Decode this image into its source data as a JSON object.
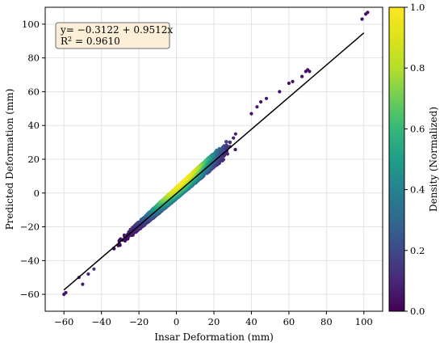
{
  "chart_data": {
    "type": "scatter",
    "xlabel": "Insar Deformation (mm)",
    "ylabel": "Predicted Deformation (mm)",
    "xlim": [
      -70,
      110
    ],
    "ylim": [
      -70,
      110
    ],
    "xticks": [
      -60,
      -40,
      -20,
      0,
      20,
      40,
      60,
      80,
      100
    ],
    "yticks": [
      -60,
      -40,
      -20,
      0,
      20,
      40,
      60,
      80,
      100
    ],
    "grid": true,
    "colormap": "viridis",
    "colorbar": {
      "label": "Density (Normalized)",
      "range": [
        0.0,
        1.0
      ],
      "ticks": [
        0.0,
        0.2,
        0.4,
        0.6,
        0.8,
        1.0
      ],
      "tick_labels": [
        "0.0",
        "0.2",
        "0.4",
        "0.6",
        "0.8",
        "1.0"
      ]
    },
    "fit_line": {
      "intercept": -0.3122,
      "slope": 0.9512,
      "x_range": [
        -60,
        100
      ],
      "color": "#000000"
    },
    "annotation": {
      "equation": "y= −0.3122 + 0.9512x",
      "r2_prefix": "R",
      "r2_sup": "2",
      "r2_suffix": " = 0.9610",
      "placement": "top-left",
      "background": "#fdeed8"
    },
    "points": {
      "core": {
        "x_range": [
          -38,
          34
        ],
        "upper_band": {
          "intercept": 3.5,
          "slope": 1.02
        },
        "lower_band": {
          "intercept": -3.5,
          "slope": 0.92
        },
        "description_density": "peak near (5, 15)"
      },
      "outliers": [
        {
          "x": -60,
          "y": -60,
          "d": 0.05
        },
        {
          "x": -59,
          "y": -59,
          "d": 0.05
        },
        {
          "x": -52,
          "y": -50,
          "d": 0.08
        },
        {
          "x": -50,
          "y": -54,
          "d": 0.08
        },
        {
          "x": -47,
          "y": -48,
          "d": 0.1
        },
        {
          "x": -44,
          "y": -45,
          "d": 0.12
        },
        {
          "x": 40,
          "y": 47,
          "d": 0.05
        },
        {
          "x": 43,
          "y": 51,
          "d": 0.05
        },
        {
          "x": 45,
          "y": 54,
          "d": 0.05
        },
        {
          "x": 48,
          "y": 56,
          "d": 0.05
        },
        {
          "x": 55,
          "y": 60,
          "d": 0.04
        },
        {
          "x": 60,
          "y": 65,
          "d": 0.04
        },
        {
          "x": 62,
          "y": 66,
          "d": 0.04
        },
        {
          "x": 67,
          "y": 69,
          "d": 0.04
        },
        {
          "x": 69,
          "y": 72,
          "d": 0.04
        },
        {
          "x": 70,
          "y": 73,
          "d": 0.04
        },
        {
          "x": 71,
          "y": 72,
          "d": 0.04
        },
        {
          "x": 99,
          "y": 103,
          "d": 0.03
        },
        {
          "x": 101,
          "y": 106,
          "d": 0.03
        },
        {
          "x": 102,
          "y": 107,
          "d": 0.03
        }
      ]
    }
  }
}
